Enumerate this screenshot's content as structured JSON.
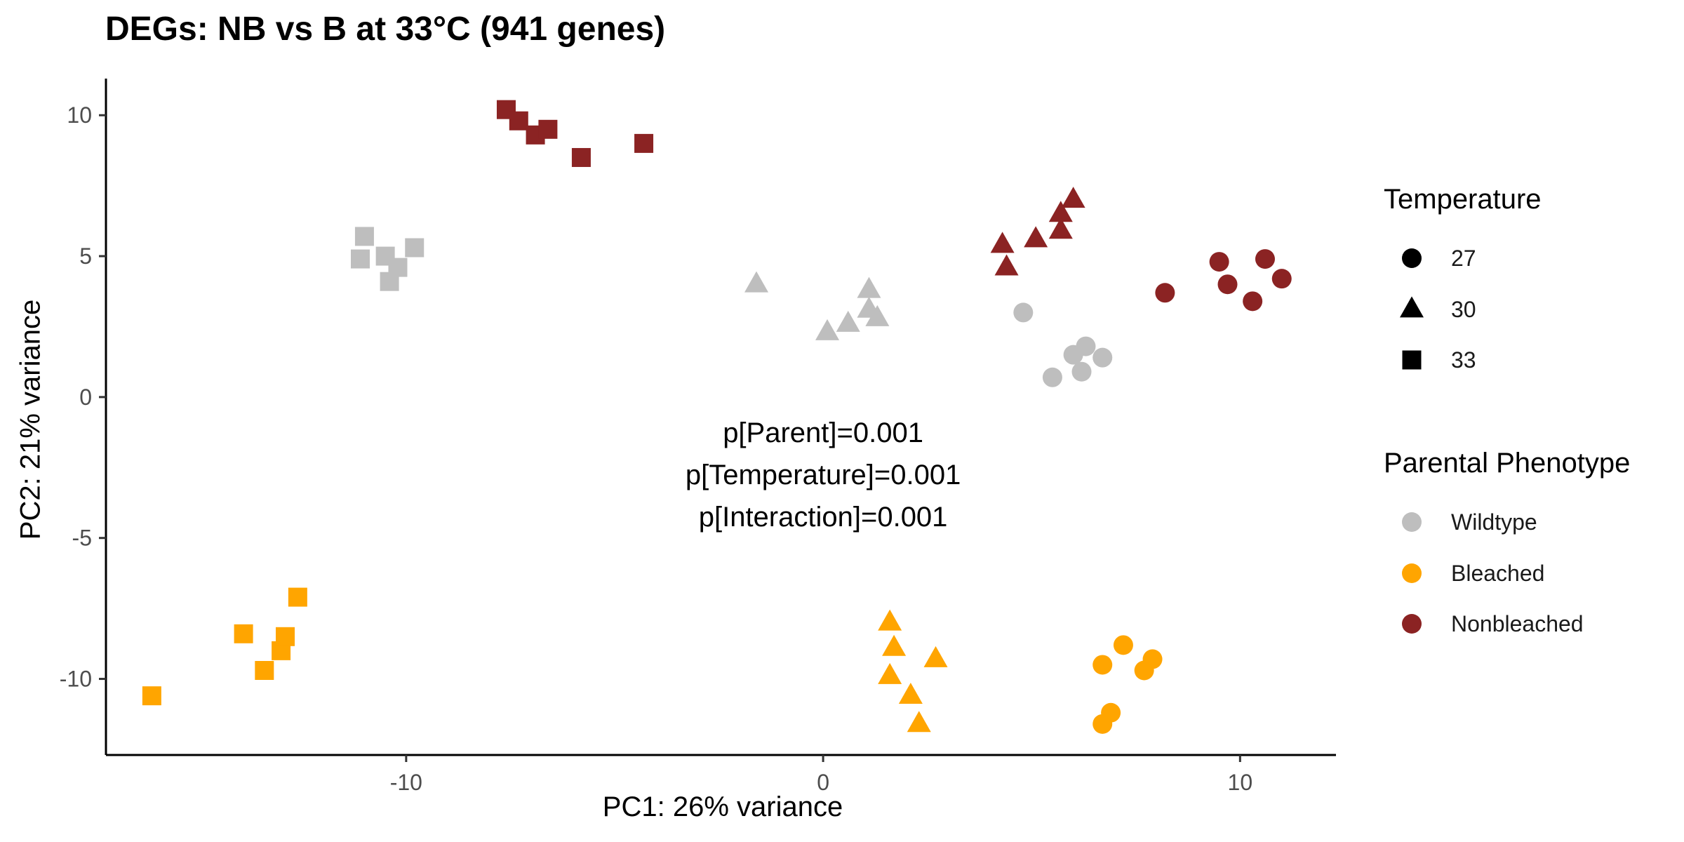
{
  "chart_data": {
    "type": "scatter",
    "title": "DEGs: NB vs B at 33°C (941 genes)",
    "xlabel": "PC1: 26% variance",
    "ylabel": "PC2: 21% variance",
    "xlim": [
      -17.2,
      12.3
    ],
    "ylim": [
      -12.7,
      11.3
    ],
    "xticks": [
      -10,
      0,
      10
    ],
    "yticks": [
      -10,
      -5,
      0,
      5,
      10
    ],
    "grid": false,
    "annotation": [
      "p[Parent]=0.001",
      "p[Temperature]=0.001",
      "p[Interaction]=0.001"
    ],
    "legend": {
      "placement": "right",
      "temperature": {
        "title": "Temperature",
        "items": [
          {
            "label": "27",
            "shape": "circle"
          },
          {
            "label": "30",
            "shape": "triangle"
          },
          {
            "label": "33",
            "shape": "square"
          }
        ]
      },
      "phenotype": {
        "title": "Parental Phenotype",
        "items": [
          {
            "label": "Wildtype",
            "color": "#bebebe"
          },
          {
            "label": "Bleached",
            "color": "#ffa500"
          },
          {
            "label": "Nonbleached",
            "color": "#8b2323"
          }
        ]
      }
    },
    "series": [
      {
        "phenotype": "Nonbleached",
        "temperature": "33",
        "shape": "square",
        "color": "#8b2323",
        "points": [
          [
            -7.6,
            10.2
          ],
          [
            -7.3,
            9.8
          ],
          [
            -6.9,
            9.3
          ],
          [
            -6.6,
            9.5
          ],
          [
            -5.8,
            8.5
          ],
          [
            -4.3,
            9.0
          ]
        ]
      },
      {
        "phenotype": "Wildtype",
        "temperature": "33",
        "shape": "square",
        "color": "#bebebe",
        "points": [
          [
            -11.0,
            5.7
          ],
          [
            -11.1,
            4.9
          ],
          [
            -10.5,
            5.0
          ],
          [
            -10.2,
            4.6
          ],
          [
            -10.4,
            4.1
          ],
          [
            -9.8,
            5.3
          ]
        ]
      },
      {
        "phenotype": "Nonbleached",
        "temperature": "30",
        "shape": "triangle",
        "color": "#8b2323",
        "points": [
          [
            4.3,
            5.4
          ],
          [
            4.4,
            4.6
          ],
          [
            5.1,
            5.6
          ],
          [
            5.7,
            6.5
          ],
          [
            5.7,
            5.9
          ],
          [
            6.0,
            7.0
          ]
        ]
      },
      {
        "phenotype": "Nonbleached",
        "temperature": "27",
        "shape": "circle",
        "color": "#8b2323",
        "points": [
          [
            8.2,
            3.7
          ],
          [
            9.5,
            4.8
          ],
          [
            9.7,
            4.0
          ],
          [
            10.3,
            3.4
          ],
          [
            10.6,
            4.9
          ],
          [
            11.0,
            4.2
          ]
        ]
      },
      {
        "phenotype": "Wildtype",
        "temperature": "30",
        "shape": "triangle",
        "color": "#bebebe",
        "points": [
          [
            -1.6,
            4.0
          ],
          [
            0.1,
            2.3
          ],
          [
            0.6,
            2.6
          ],
          [
            1.1,
            3.1
          ],
          [
            1.1,
            3.8
          ],
          [
            1.3,
            2.8
          ]
        ]
      },
      {
        "phenotype": "Wildtype",
        "temperature": "27",
        "shape": "circle",
        "color": "#bebebe",
        "points": [
          [
            4.8,
            3.0
          ],
          [
            5.5,
            0.7
          ],
          [
            6.0,
            1.5
          ],
          [
            6.2,
            0.9
          ],
          [
            6.3,
            1.8
          ],
          [
            6.7,
            1.4
          ]
        ]
      },
      {
        "phenotype": "Bleached",
        "temperature": "33",
        "shape": "square",
        "color": "#ffa500",
        "points": [
          [
            -16.1,
            -10.6
          ],
          [
            -13.9,
            -8.4
          ],
          [
            -13.4,
            -9.7
          ],
          [
            -13.0,
            -9.0
          ],
          [
            -12.9,
            -8.5
          ],
          [
            -12.6,
            -7.1
          ]
        ]
      },
      {
        "phenotype": "Bleached",
        "temperature": "30",
        "shape": "triangle",
        "color": "#ffa500",
        "points": [
          [
            1.6,
            -8.0
          ],
          [
            1.7,
            -8.9
          ],
          [
            1.6,
            -9.9
          ],
          [
            2.1,
            -10.6
          ],
          [
            2.3,
            -11.6
          ],
          [
            2.7,
            -9.3
          ]
        ]
      },
      {
        "phenotype": "Bleached",
        "temperature": "27",
        "shape": "circle",
        "color": "#ffa500",
        "points": [
          [
            6.7,
            -9.5
          ],
          [
            7.2,
            -8.8
          ],
          [
            7.9,
            -9.3
          ],
          [
            7.7,
            -9.7
          ],
          [
            6.9,
            -11.2
          ],
          [
            6.7,
            -11.6
          ]
        ]
      }
    ]
  }
}
